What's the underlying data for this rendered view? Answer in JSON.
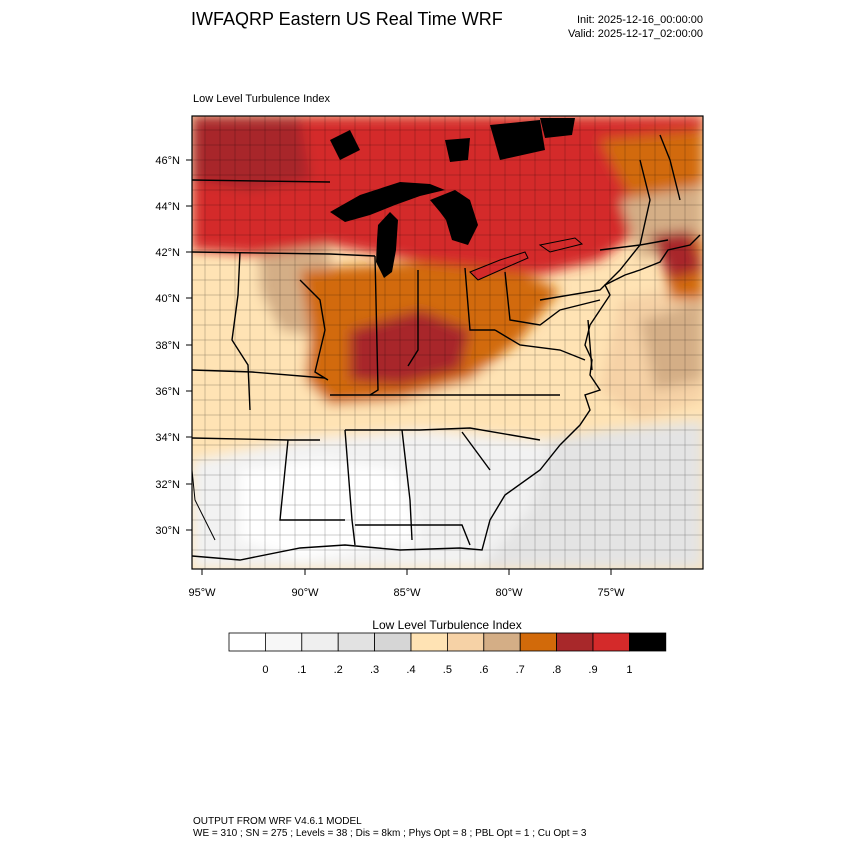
{
  "header": {
    "title": "IWFAQRP Eastern US Real Time WRF",
    "init": "Init: 2025-12-16_00:00:00",
    "valid": "Valid: 2025-12-17_02:00:00"
  },
  "map": {
    "subtitle": "Low Level Turbulence Index",
    "lat_labels": [
      "46°N",
      "44°N",
      "42°N",
      "40°N",
      "38°N",
      "36°N",
      "34°N",
      "32°N",
      "30°N"
    ],
    "lon_labels": [
      "95°W",
      "90°W",
      "85°W",
      "80°W",
      "75°W"
    ]
  },
  "legend": {
    "title": "Low Level Turbulence Index",
    "colors": [
      "#ffffff",
      "#f7f7f7",
      "#efefef",
      "#e2e2e2",
      "#d6d6d6",
      "#ffe3b4",
      "#f6d2a6",
      "#d4ae86",
      "#d26a0a",
      "#a8282a",
      "#d42a2a",
      "#000000"
    ],
    "labels": [
      "0",
      ".1",
      ".2",
      ".3",
      ".4",
      ".5",
      ".6",
      ".7",
      ".8",
      ".9",
      "1"
    ]
  },
  "footer": {
    "line1": "OUTPUT FROM WRF V4.6.1 MODEL",
    "line2": "WE = 310 ; SN = 275 ; Levels = 38 ; Dis = 8km ; Phys Opt = 8 ; PBL Opt = 1 ; Cu Opt = 3"
  }
}
